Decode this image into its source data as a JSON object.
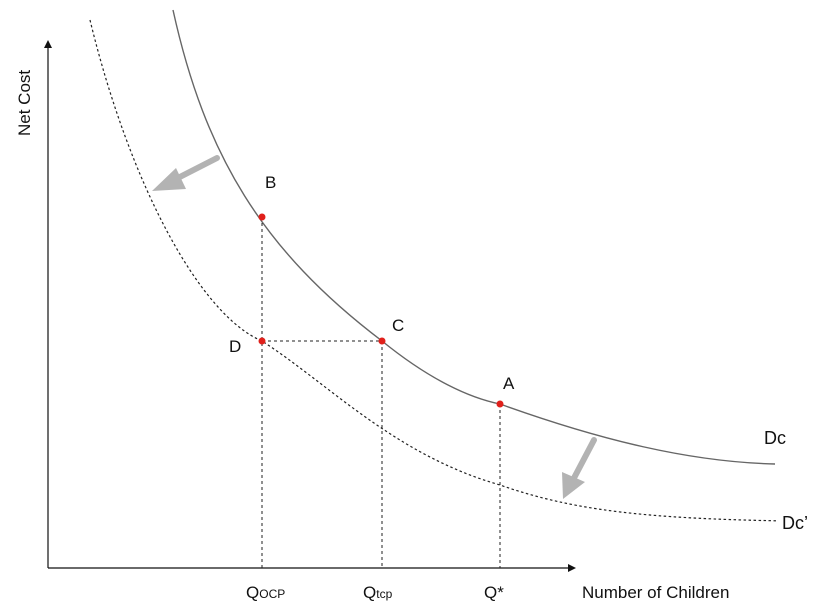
{
  "axes": {
    "y_label": "Net Cost",
    "x_label": "Number of Children"
  },
  "curves": [
    {
      "id": "dc",
      "label": "Dc",
      "style": "solid",
      "color": "#666666"
    },
    {
      "id": "dc_prime",
      "label": "Dc’",
      "style": "dotted",
      "color": "#222222"
    }
  ],
  "points": [
    {
      "id": "b",
      "label": "B",
      "color": "#e0201b"
    },
    {
      "id": "c",
      "label": "C",
      "color": "#e0201b"
    },
    {
      "id": "a",
      "label": "A",
      "color": "#e0201b"
    },
    {
      "id": "d",
      "label": "D",
      "color": "#e0201b"
    }
  ],
  "x_ticks": [
    {
      "id": "qocp",
      "main": "Q",
      "sub": "OCP"
    },
    {
      "id": "qtcp",
      "main": "Q",
      "sub": "tcp"
    },
    {
      "id": "qstar",
      "main": "Q*",
      "sub": ""
    }
  ],
  "arrow_color": "#b3b3b3"
}
